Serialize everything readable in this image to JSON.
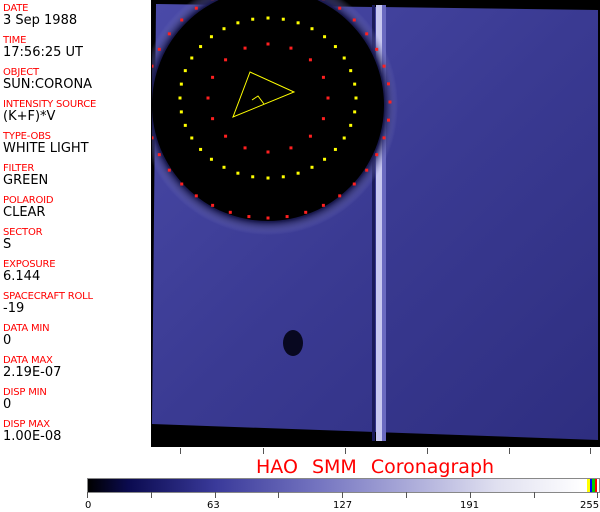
{
  "header": [
    {
      "label": "DATE",
      "value": "3 Sep 1988"
    },
    {
      "label": "TIME",
      "value": "17:56:25 UT"
    },
    {
      "label": "OBJECT",
      "value": "SUN:CORONA"
    },
    {
      "label": "INTENSITY SOURCE",
      "value": "(K+F)*V"
    },
    {
      "label": "TYPE-OBS",
      "value": "WHITE LIGHT"
    },
    {
      "label": "FILTER",
      "value": "GREEN"
    },
    {
      "label": "POLAROID",
      "value": "CLEAR"
    },
    {
      "label": "SECTOR",
      "value": "S"
    },
    {
      "label": "EXPOSURE",
      "value": "6.144"
    },
    {
      "label": "SPACECRAFT ROLL",
      "value": "-19"
    },
    {
      "label": "DATA MIN",
      "value": "0"
    },
    {
      "label": "DATA MAX",
      "value": "2.19E-07"
    },
    {
      "label": "DISP MIN",
      "value": "0"
    },
    {
      "label": "DISP MAX",
      "value": "1.00E-08"
    }
  ],
  "title": "HAO SMM Coronagraph",
  "colorbar": {
    "ticks": [
      "0",
      "63",
      "127",
      "191",
      "255"
    ],
    "min": 0,
    "max": 255,
    "colors": {
      "low": "#000000",
      "mid": "#7474c0",
      "high": "#ffffff"
    },
    "end_markers": [
      "#ffff00",
      "#0000ff",
      "#00c000",
      "#ff0000"
    ]
  },
  "colors": {
    "label": "#ff0000",
    "ring_outer": "#ff2020",
    "ring_inner": "#ffff00"
  }
}
